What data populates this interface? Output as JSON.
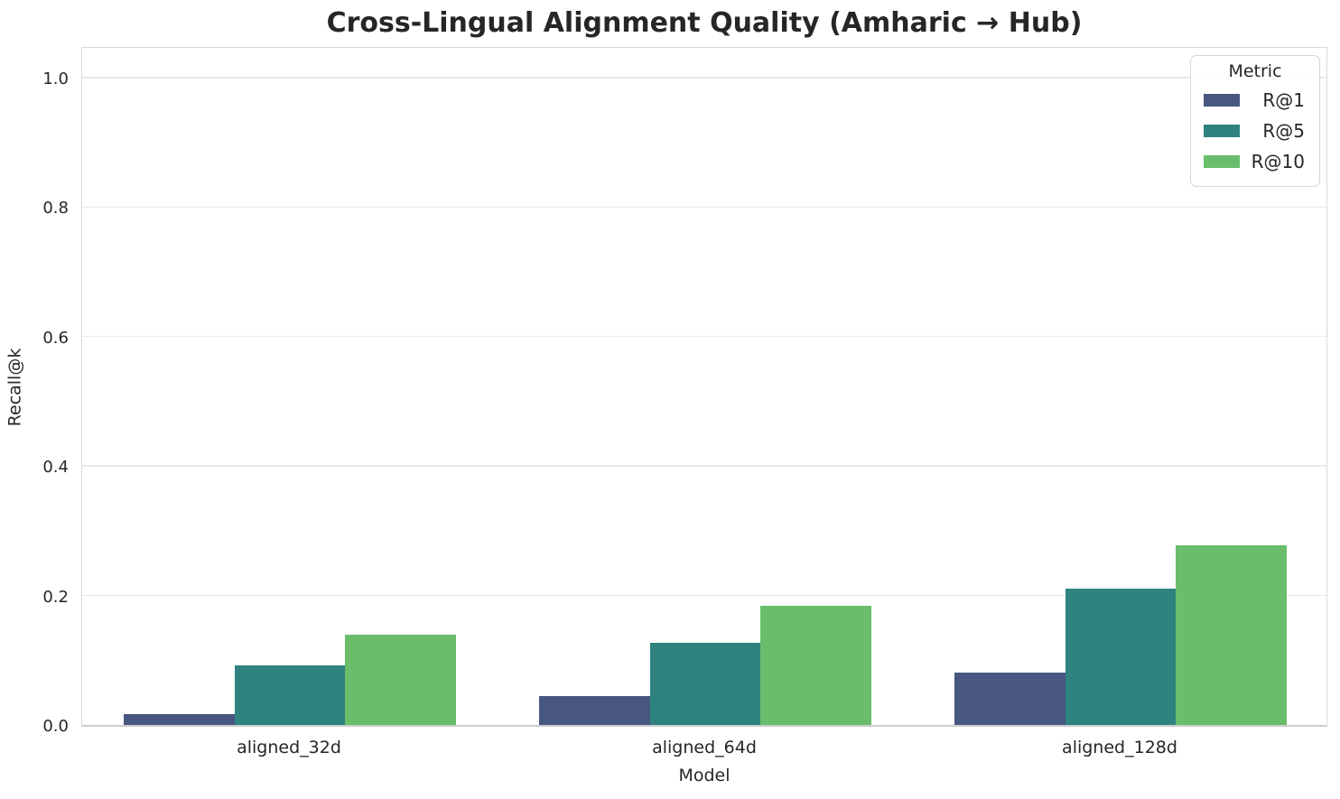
{
  "chart_data": {
    "type": "bar",
    "title": "Cross-Lingual Alignment Quality (Amharic → Hub)",
    "xlabel": "Model",
    "ylabel": "Recall@k",
    "categories": [
      "aligned_32d",
      "aligned_64d",
      "aligned_128d"
    ],
    "series": [
      {
        "name": "R@1",
        "color": "#47577f",
        "values": [
          0.017,
          0.045,
          0.081
        ]
      },
      {
        "name": "R@5",
        "color": "#2e837f",
        "values": [
          0.092,
          0.127,
          0.21
        ]
      },
      {
        "name": "R@10",
        "color": "#69bd6b",
        "values": [
          0.14,
          0.184,
          0.277
        ]
      }
    ],
    "ylim": [
      0,
      1.05
    ],
    "yticks": [
      0.0,
      0.2,
      0.4,
      0.6,
      0.8,
      1.0
    ],
    "ytick_labels": [
      "0.0",
      "0.2",
      "0.4",
      "0.6",
      "0.8",
      "1.0"
    ],
    "grid": true,
    "grid_color": "#e9e9e9",
    "background_color": "#ffffff",
    "text_color": "#262626",
    "legend": {
      "title": "Metric",
      "position": "upper right"
    },
    "bar_group_fraction": 0.8
  }
}
